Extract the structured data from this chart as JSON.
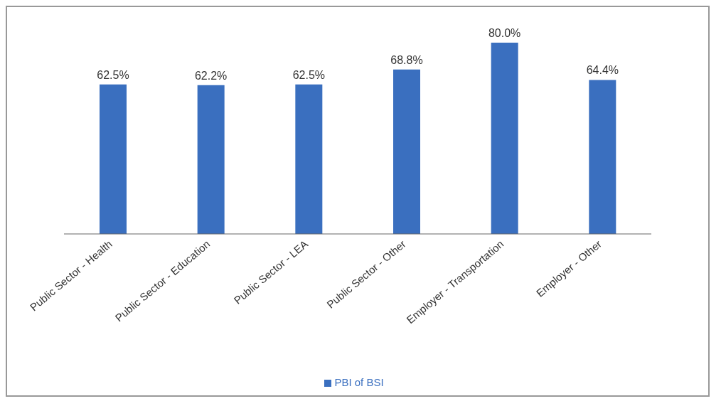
{
  "chart_data": {
    "type": "bar",
    "categories": [
      "Public Sector - Health",
      "Public Sector - Education",
      "Public Sector - LEA",
      "Public Sector - Other",
      "Employer - Transportation",
      "Employer - Other"
    ],
    "series": [
      {
        "name": "PBI of BSI",
        "color": "#3a6fbf",
        "values": [
          62.5,
          62.2,
          62.5,
          68.8,
          80.0,
          64.4
        ],
        "value_labels": [
          "62.5%",
          "62.2%",
          "62.5%",
          "68.8%",
          "80.0%",
          "64.4%"
        ]
      }
    ],
    "legend": "bottom"
  }
}
